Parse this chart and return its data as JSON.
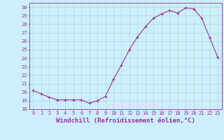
{
  "x": [
    0,
    1,
    2,
    3,
    4,
    5,
    6,
    7,
    8,
    9,
    10,
    11,
    12,
    13,
    14,
    15,
    16,
    17,
    18,
    19,
    20,
    21,
    22,
    23
  ],
  "y": [
    20.2,
    19.8,
    19.4,
    19.1,
    19.1,
    19.1,
    19.1,
    18.7,
    19.0,
    19.5,
    21.5,
    23.2,
    25.0,
    26.5,
    27.7,
    28.7,
    29.2,
    29.6,
    29.3,
    29.9,
    29.8,
    28.7,
    26.4,
    24.1
  ],
  "line_color": "#993399",
  "marker": "+",
  "bg_color": "#cceeff",
  "grid_color": "#aaddcc",
  "axis_color": "#993399",
  "xlabel": "Windchill (Refroidissement éolien,°C)",
  "ylim": [
    18,
    30.5
  ],
  "yticks": [
    18,
    19,
    20,
    21,
    22,
    23,
    24,
    25,
    26,
    27,
    28,
    29,
    30
  ],
  "xticks": [
    0,
    1,
    2,
    3,
    4,
    5,
    6,
    7,
    8,
    9,
    10,
    11,
    12,
    13,
    14,
    15,
    16,
    17,
    18,
    19,
    20,
    21,
    22,
    23
  ],
  "tick_fontsize": 5.0,
  "xlabel_fontsize": 6.5
}
